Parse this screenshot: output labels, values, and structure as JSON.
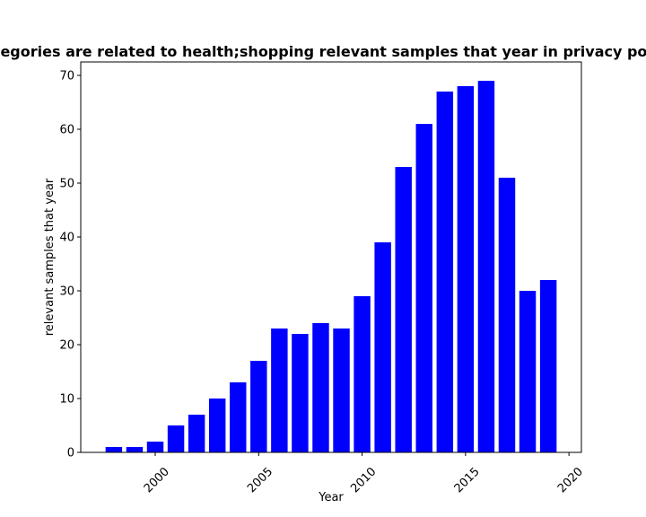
{
  "chart_data": {
    "type": "bar",
    "title": "Categories are related to health;shopping relevant samples that year in privacy policies",
    "xlabel": "Year",
    "ylabel": "relevant samples that year",
    "x": [
      1998,
      1999,
      2000,
      2001,
      2002,
      2003,
      2004,
      2005,
      2006,
      2007,
      2008,
      2009,
      2010,
      2011,
      2012,
      2013,
      2014,
      2015,
      2016,
      2017,
      2018,
      2019
    ],
    "values": [
      1,
      1,
      2,
      5,
      7,
      10,
      13,
      17,
      23,
      22,
      24,
      23,
      29,
      39,
      53,
      61,
      67,
      68,
      69,
      51,
      30,
      32
    ],
    "xlim": [
      1996.4,
      2020.6
    ],
    "ylim": [
      0,
      72.5
    ],
    "xticks": [
      "2000",
      "2005",
      "2010",
      "2015",
      "2020"
    ],
    "yticks": [
      "0",
      "10",
      "20",
      "30",
      "40",
      "50",
      "60",
      "70"
    ],
    "bar_color": "#0000ff",
    "grid": false
  }
}
